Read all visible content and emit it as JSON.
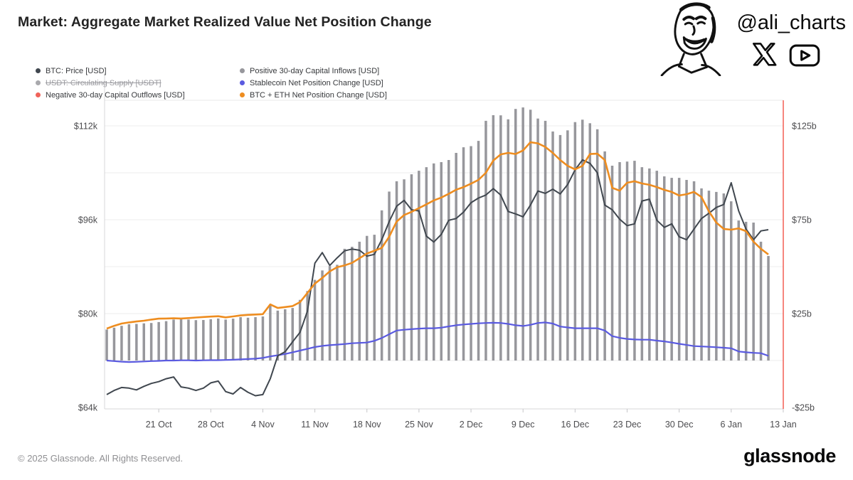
{
  "header": {
    "title": "Market: Aggregate Market Realized Value Net Position Change",
    "handle": "@ali_charts",
    "icons": [
      "avatar-sketch",
      "x-logo",
      "youtube-logo"
    ]
  },
  "legend": {
    "items": [
      {
        "label": "BTC: Price [USD]",
        "color": "#40474f",
        "disabled": false
      },
      {
        "label": "USDT: Circulating Supply [USDT]",
        "color": "#a9a9ad",
        "disabled": true
      },
      {
        "label": "Negative 30-day Capital Outflows [USD]",
        "color": "#f0635a",
        "disabled": false
      },
      {
        "label": "Positive 30-day Capital Inflows [USD]",
        "color": "#97979c",
        "disabled": false
      },
      {
        "label": "Stablecoin Net Position Change [USD]",
        "color": "#5a5ae0",
        "disabled": false
      },
      {
        "label": "BTC + ETH Net Position Change [USD]",
        "color": "#ee8d20",
        "disabled": false
      }
    ]
  },
  "chart_data": {
    "type": "mixed",
    "frequency": "daily",
    "start_date": "14 Oct",
    "end_date": "11 Jan",
    "grid": true,
    "x_ticks": [
      {
        "day": 7,
        "label": "21 Oct"
      },
      {
        "day": 14,
        "label": "28 Oct"
      },
      {
        "day": 21,
        "label": "4 Nov"
      },
      {
        "day": 28,
        "label": "11 Nov"
      },
      {
        "day": 35,
        "label": "18 Nov"
      },
      {
        "day": 42,
        "label": "25 Nov"
      },
      {
        "day": 49,
        "label": "2 Dec"
      },
      {
        "day": 56,
        "label": "9 Dec"
      },
      {
        "day": 63,
        "label": "16 Dec"
      },
      {
        "day": 70,
        "label": "23 Dec"
      },
      {
        "day": 77,
        "label": "30 Dec"
      },
      {
        "day": 84,
        "label": "6 Jan"
      },
      {
        "day": 91,
        "label": "13 Jan"
      }
    ],
    "left_axis": {
      "unit": "USD (BTC price)",
      "min_k": 64,
      "max_k": 116.6,
      "ticks": [
        {
          "value_k": 112,
          "label": "$112k"
        },
        {
          "value_k": 96,
          "label": "$96k"
        },
        {
          "value_k": 80,
          "label": "$80k"
        },
        {
          "value_k": 64,
          "label": "$64k"
        }
      ]
    },
    "right_axis": {
      "unit": "USD billions",
      "min_b": -25,
      "max_b": 138,
      "grid_values_b": [
        125,
        100,
        75,
        50,
        25,
        0
      ],
      "ticks": [
        {
          "value_b": 125,
          "label": "$125b"
        },
        {
          "value_b": 75,
          "label": "$75b"
        },
        {
          "value_b": 25,
          "label": "$25b"
        },
        {
          "value_b": -25,
          "label": "-$25b"
        }
      ],
      "spine_color": "#f4685e"
    },
    "series": [
      {
        "role": "bars",
        "name": "Positive 30-day Capital Inflows [USD]",
        "type": "bar",
        "axis": "right",
        "color": "#97979c",
        "values_b": [
          16.5,
          17.5,
          18.5,
          19.3,
          19.5,
          19.8,
          20,
          20.5,
          21,
          21.8,
          22,
          21.8,
          21.5,
          21.6,
          22,
          22.4,
          21.8,
          22.3,
          23.1,
          22.8,
          23.1,
          23.5,
          29.2,
          26.6,
          27.3,
          28,
          32.3,
          37,
          43,
          48,
          50.3,
          51,
          59.5,
          60.6,
          63.3,
          66.4,
          67,
          80,
          90,
          95.5,
          96.5,
          99.2,
          101.1,
          103,
          105,
          105.7,
          106.8,
          110.6,
          113.6,
          114.2,
          117,
          127.7,
          130.7,
          130.6,
          128.5,
          134,
          134.8,
          133.6,
          128.9,
          127.7,
          122,
          120.1,
          122.6,
          127,
          128.3,
          126.4,
          123.2,
          111.4,
          103.8,
          105.7,
          106,
          106.4,
          103,
          102.3,
          101.1,
          98.1,
          97.3,
          97.3,
          96.2,
          95.5,
          91.7,
          90.5,
          89.8,
          89,
          84.8,
          74.6,
          73.9,
          73.5,
          63.3,
          55.7
        ]
      },
      {
        "role": "stablecoin",
        "name": "Stablecoin Net Position Change [USD]",
        "type": "line",
        "axis": "right",
        "color": "#5a5ae0",
        "values_b": [
          0,
          -0.3,
          -0.6,
          -0.8,
          -0.7,
          -0.5,
          -0.3,
          -0.2,
          0,
          0,
          0.1,
          0.1,
          0,
          0.1,
          0.2,
          0.2,
          0.3,
          0.4,
          0.6,
          0.8,
          1,
          1.4,
          2.2,
          2.8,
          3.5,
          4.4,
          5.3,
          6.2,
          7.2,
          7.8,
          8.2,
          8.5,
          8.8,
          9.2,
          9.4,
          9.6,
          10.5,
          12,
          14,
          16,
          16.4,
          16.7,
          17,
          17.2,
          17.2,
          17.5,
          18.2,
          18.8,
          19.2,
          19.5,
          19.8,
          20,
          20.1,
          20,
          19.5,
          18.8,
          18.4,
          19,
          20,
          20.3,
          19.7,
          18.1,
          17.6,
          17.2,
          17.2,
          17.2,
          17.2,
          16,
          13,
          12.1,
          11.5,
          11.2,
          11.1,
          11.1,
          10.6,
          10.2,
          9.6,
          8.9,
          8.3,
          7.7,
          7.5,
          7.3,
          7.1,
          6.8,
          6.5,
          4.8,
          4.4,
          4.1,
          3.9,
          2.5
        ]
      },
      {
        "role": "price",
        "name": "BTC: Price [USD]",
        "type": "line",
        "axis": "left",
        "color": "#40474f",
        "values_k": [
          66.2,
          66.9,
          67.4,
          67.3,
          67,
          67.6,
          68.1,
          68.4,
          68.9,
          69.2,
          67.5,
          67.3,
          66.9,
          67.3,
          68.2,
          68.5,
          66.7,
          66.3,
          67.4,
          66.6,
          66,
          66.2,
          68.9,
          72.8,
          73.5,
          75.2,
          76.8,
          80.4,
          88.6,
          90.4,
          88.2,
          89.5,
          90.7,
          91,
          90.8,
          89.8,
          90.1,
          92.6,
          95.7,
          98.3,
          99.3,
          97.7,
          97.5,
          93.2,
          92.2,
          93.5,
          95.9,
          96.2,
          97.3,
          98.9,
          99.7,
          100.2,
          101.3,
          100.2,
          97.4,
          97,
          96.5,
          98.5,
          100.9,
          100.5,
          101.2,
          100.4,
          102,
          104.5,
          106.2,
          105.6,
          104,
          98.5,
          97.7,
          96.1,
          95,
          95.3,
          99.2,
          99.5,
          95.9,
          94.7,
          95.3,
          93.1,
          92.6,
          94.4,
          96.2,
          97.1,
          98.1,
          98.6,
          102.3,
          97.5,
          94.4,
          92.6,
          94.1,
          94.3
        ]
      },
      {
        "role": "btceth",
        "name": "BTC + ETH Net Position Change [USD]",
        "type": "line",
        "axis": "right",
        "color": "#ee8d20",
        "values_b": [
          17,
          18.5,
          19.7,
          20.3,
          20.8,
          21.2,
          21.8,
          22.3,
          22.4,
          22.5,
          22.4,
          22.6,
          22.9,
          23.2,
          23.4,
          23.6,
          23,
          23.5,
          24,
          24.3,
          24.5,
          24.7,
          29.9,
          28,
          28.5,
          29,
          31.1,
          36,
          41,
          44,
          47.5,
          49.7,
          50.7,
          52,
          54.5,
          57,
          58.5,
          60,
          66,
          74,
          77.5,
          79.2,
          81.2,
          83.2,
          85.3,
          86.8,
          88.8,
          91,
          92.4,
          94.2,
          96.2,
          100,
          106.5,
          109.8,
          110.6,
          110,
          111.9,
          116.3,
          115.7,
          113.8,
          110.6,
          106.8,
          103.7,
          101.8,
          103.7,
          110,
          110.2,
          106.8,
          92,
          90.5,
          94.7,
          95.5,
          94.3,
          93.6,
          92.4,
          90.9,
          89.8,
          87.9,
          88.6,
          89.8,
          87.1,
          79.5,
          73.5,
          70.1,
          69.7,
          70.4,
          68.9,
          63.3,
          59.5,
          56.5
        ]
      }
    ]
  },
  "footer": {
    "copyright": "© 2025 Glassnode. All Rights Reserved.",
    "brand": "glassnode"
  }
}
